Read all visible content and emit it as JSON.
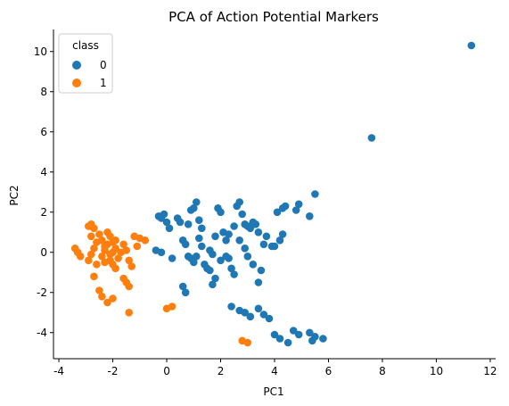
{
  "chart_data": {
    "type": "scatter",
    "title": "PCA of Action Potential Markers",
    "xlabel": "PC1",
    "ylabel": "PC2",
    "xlim": [
      -4.2,
      12.2
    ],
    "ylim": [
      -5.3,
      11.1
    ],
    "xticks": [
      -4,
      -2,
      0,
      2,
      4,
      6,
      8,
      10,
      12
    ],
    "yticks": [
      -4,
      -2,
      0,
      2,
      4,
      6,
      8,
      10
    ],
    "grid": false,
    "legend": {
      "title": "class",
      "placement": "top-left",
      "entries": [
        {
          "label": "0",
          "color": "#1f77b4"
        },
        {
          "label": "1",
          "color": "#ff7f0e"
        }
      ]
    },
    "series": [
      {
        "name": "0",
        "color": "#1f77b4",
        "points": [
          [
            -0.3,
            1.8
          ],
          [
            -0.2,
            1.7
          ],
          [
            -0.1,
            1.9
          ],
          [
            0.0,
            1.5
          ],
          [
            0.1,
            1.2
          ],
          [
            -0.4,
            0.1
          ],
          [
            -0.2,
            0.0
          ],
          [
            0.2,
            -0.3
          ],
          [
            0.4,
            1.7
          ],
          [
            0.5,
            1.5
          ],
          [
            0.6,
            0.6
          ],
          [
            0.7,
            0.4
          ],
          [
            0.8,
            1.4
          ],
          [
            0.9,
            2.1
          ],
          [
            1.0,
            2.2
          ],
          [
            1.1,
            2.5
          ],
          [
            1.2,
            1.6
          ],
          [
            1.3,
            1.2
          ],
          [
            0.6,
            -1.7
          ],
          [
            0.7,
            -2.0
          ],
          [
            0.8,
            -0.2
          ],
          [
            0.9,
            -0.3
          ],
          [
            1.0,
            -0.5
          ],
          [
            1.1,
            -0.2
          ],
          [
            1.2,
            0.7
          ],
          [
            1.3,
            0.3
          ],
          [
            1.4,
            -0.6
          ],
          [
            1.5,
            -0.8
          ],
          [
            1.6,
            0.1
          ],
          [
            1.7,
            -0.1
          ],
          [
            1.8,
            0.8
          ],
          [
            1.9,
            2.2
          ],
          [
            2.0,
            2.0
          ],
          [
            2.1,
            1.0
          ],
          [
            2.2,
            0.6
          ],
          [
            2.3,
            -0.3
          ],
          [
            2.4,
            -0.8
          ],
          [
            2.5,
            -1.1
          ],
          [
            1.8,
            -1.3
          ],
          [
            1.7,
            -1.6
          ],
          [
            1.6,
            -0.9
          ],
          [
            2.0,
            -0.4
          ],
          [
            2.2,
            -0.2
          ],
          [
            2.3,
            0.9
          ],
          [
            2.5,
            1.3
          ],
          [
            2.6,
            2.3
          ],
          [
            2.7,
            2.5
          ],
          [
            2.8,
            1.9
          ],
          [
            2.9,
            1.4
          ],
          [
            3.0,
            1.3
          ],
          [
            3.1,
            1.2
          ],
          [
            3.2,
            1.5
          ],
          [
            3.3,
            1.4
          ],
          [
            3.4,
            1.0
          ],
          [
            2.7,
            0.6
          ],
          [
            2.9,
            0.2
          ],
          [
            3.0,
            -0.2
          ],
          [
            3.2,
            -0.6
          ],
          [
            3.4,
            -1.5
          ],
          [
            3.5,
            -0.9
          ],
          [
            3.6,
            0.4
          ],
          [
            3.7,
            0.8
          ],
          [
            3.9,
            0.3
          ],
          [
            4.0,
            0.3
          ],
          [
            4.2,
            0.6
          ],
          [
            4.3,
            0.9
          ],
          [
            4.1,
            2.0
          ],
          [
            4.3,
            2.2
          ],
          [
            4.4,
            2.3
          ],
          [
            4.8,
            2.1
          ],
          [
            4.9,
            2.4
          ],
          [
            5.3,
            1.8
          ],
          [
            5.5,
            2.9
          ],
          [
            2.4,
            -2.7
          ],
          [
            2.7,
            -2.9
          ],
          [
            2.9,
            -3.0
          ],
          [
            3.1,
            -3.2
          ],
          [
            3.4,
            -2.8
          ],
          [
            3.6,
            -3.1
          ],
          [
            3.8,
            -3.3
          ],
          [
            4.0,
            -4.1
          ],
          [
            4.2,
            -4.3
          ],
          [
            4.5,
            -4.5
          ],
          [
            4.7,
            -3.9
          ],
          [
            4.9,
            -4.1
          ],
          [
            5.3,
            -4.0
          ],
          [
            5.5,
            -4.2
          ],
          [
            5.8,
            -4.3
          ],
          [
            5.4,
            -4.4
          ],
          [
            7.6,
            5.7
          ],
          [
            11.3,
            10.3
          ]
        ]
      },
      {
        "name": "1",
        "color": "#ff7f0e",
        "points": [
          [
            -3.4,
            0.2
          ],
          [
            -3.3,
            0.0
          ],
          [
            -3.2,
            -0.2
          ],
          [
            -2.9,
            1.3
          ],
          [
            -2.8,
            1.4
          ],
          [
            -2.7,
            1.2
          ],
          [
            -2.8,
            0.8
          ],
          [
            -2.6,
            0.5
          ],
          [
            -2.7,
            0.2
          ],
          [
            -2.8,
            -0.1
          ],
          [
            -2.9,
            -0.4
          ],
          [
            -2.6,
            -0.6
          ],
          [
            -2.7,
            -1.2
          ],
          [
            -2.5,
            -1.9
          ],
          [
            -2.4,
            -2.2
          ],
          [
            -2.2,
            -2.5
          ],
          [
            -2.0,
            -2.3
          ],
          [
            -2.5,
            0.9
          ],
          [
            -2.4,
            0.6
          ],
          [
            -2.3,
            0.3
          ],
          [
            -2.2,
            1.0
          ],
          [
            -2.1,
            0.8
          ],
          [
            -2.0,
            0.5
          ],
          [
            -1.9,
            0.2
          ],
          [
            -2.4,
            -0.2
          ],
          [
            -2.3,
            -0.5
          ],
          [
            -2.1,
            -0.1
          ],
          [
            -2.0,
            -0.6
          ],
          [
            -1.9,
            -0.8
          ],
          [
            -1.8,
            -0.3
          ],
          [
            -1.7,
            0.0
          ],
          [
            -1.6,
            0.4
          ],
          [
            -1.5,
            0.1
          ],
          [
            -1.4,
            -0.4
          ],
          [
            -1.3,
            -0.7
          ],
          [
            -1.5,
            -1.5
          ],
          [
            -1.4,
            -1.7
          ],
          [
            -1.6,
            -1.3
          ],
          [
            -1.4,
            -3.0
          ],
          [
            -1.2,
            0.8
          ],
          [
            -1.0,
            0.7
          ],
          [
            -0.8,
            0.6
          ],
          [
            -1.1,
            0.3
          ],
          [
            -2.2,
            0.4
          ],
          [
            -2.0,
            0.0
          ],
          [
            -1.9,
            0.6
          ],
          [
            -2.1,
            -0.4
          ],
          [
            -2.3,
            0.1
          ],
          [
            0.0,
            -2.8
          ],
          [
            0.2,
            -2.7
          ],
          [
            2.8,
            -4.4
          ],
          [
            3.0,
            -4.5
          ]
        ]
      }
    ]
  }
}
